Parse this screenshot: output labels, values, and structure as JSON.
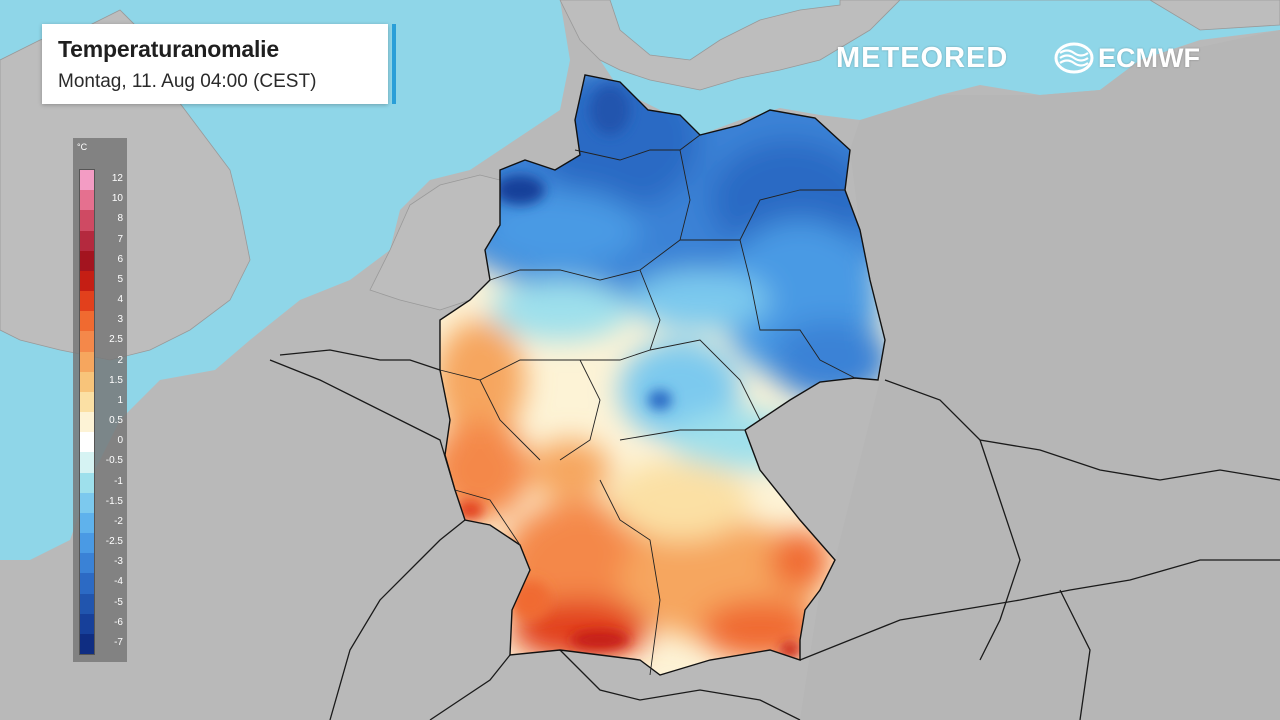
{
  "header": {
    "title": "Temperaturanomalie",
    "subtitle": "Montag, 11. Aug 04:00 (CEST)"
  },
  "branding": {
    "meteored": "METEORED",
    "ecmwf": "ECMWF"
  },
  "legend": {
    "unit": "°C",
    "items": [
      {
        "label": "12",
        "color": "#f39cc4"
      },
      {
        "label": "10",
        "color": "#e5708f"
      },
      {
        "label": "8",
        "color": "#cf4a63"
      },
      {
        "label": "7",
        "color": "#b4293e"
      },
      {
        "label": "6",
        "color": "#a3141f"
      },
      {
        "label": "5",
        "color": "#c51e14"
      },
      {
        "label": "4",
        "color": "#e2401c"
      },
      {
        "label": "3",
        "color": "#f06a30"
      },
      {
        "label": "2.5",
        "color": "#f4884a"
      },
      {
        "label": "2",
        "color": "#f6a65e"
      },
      {
        "label": "1.5",
        "color": "#f8c47a"
      },
      {
        "label": "1",
        "color": "#fbe0a4"
      },
      {
        "label": "0.5",
        "color": "#fdf3d6"
      },
      {
        "label": "0",
        "color": "#ffffff"
      },
      {
        "label": "-0.5",
        "color": "#d6f3f3"
      },
      {
        "label": "-1",
        "color": "#9ee0ec"
      },
      {
        "label": "-1.5",
        "color": "#7cc9ee"
      },
      {
        "label": "-2",
        "color": "#5fb2ec"
      },
      {
        "label": "-2.5",
        "color": "#4a9ae4"
      },
      {
        "label": "-3",
        "color": "#3a82d6"
      },
      {
        "label": "-4",
        "color": "#2c6ac4"
      },
      {
        "label": "-5",
        "color": "#2155ae"
      },
      {
        "label": "-6",
        "color": "#17409a"
      },
      {
        "label": "-7",
        "color": "#0f2d82"
      }
    ]
  },
  "colors": {
    "sea": "#8fd6e8",
    "land": "#b9b9b9",
    "accent": "#2a9fd8"
  }
}
